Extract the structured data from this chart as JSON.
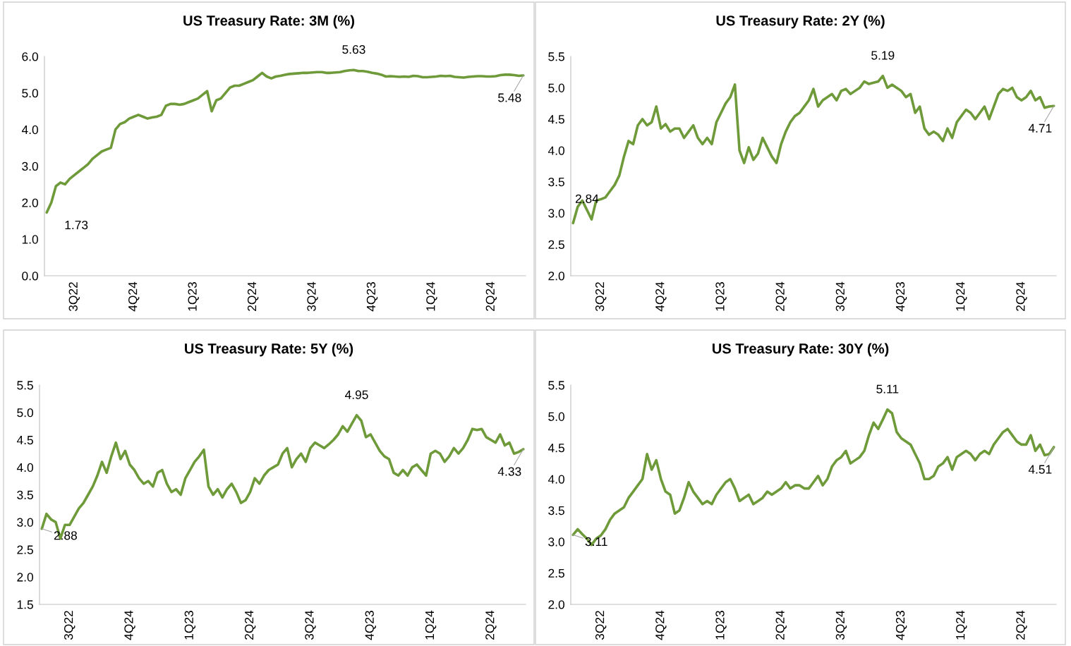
{
  "chart_data": [
    {
      "type": "line",
      "title": "US Treasury Rate: 3M (%)",
      "grid": false,
      "categories": [
        null,
        null,
        null,
        null,
        null,
        null,
        "3Q22",
        null,
        null,
        null,
        null,
        null,
        null,
        null,
        null,
        null,
        null,
        null,
        null,
        "4Q24",
        null,
        null,
        null,
        null,
        null,
        null,
        null,
        null,
        null,
        null,
        null,
        null,
        "1Q23",
        null,
        null,
        null,
        null,
        null,
        null,
        null,
        null,
        null,
        null,
        null,
        null,
        "2Q24",
        null,
        null,
        null,
        null,
        null,
        null,
        null,
        null,
        null,
        null,
        null,
        null,
        "3Q24",
        null,
        null,
        null,
        null,
        null,
        null,
        null,
        null,
        null,
        null,
        null,
        null,
        "4Q23",
        null,
        null,
        null,
        null,
        null,
        null,
        null,
        null,
        null,
        null,
        null,
        null,
        "1Q24",
        null,
        null,
        null,
        null,
        null,
        null,
        null,
        null,
        null,
        null,
        null,
        null,
        "2Q24",
        null,
        null,
        null,
        null,
        null,
        null,
        null
      ],
      "series": [
        {
          "color": "#6e9a3a",
          "values": [
            1.73,
            2.0,
            2.45,
            2.55,
            2.5,
            2.65,
            2.75,
            2.85,
            2.95,
            3.05,
            3.2,
            3.3,
            3.4,
            3.45,
            3.5,
            4.0,
            4.15,
            4.2,
            4.3,
            4.35,
            4.4,
            4.35,
            4.3,
            4.33,
            4.35,
            4.4,
            4.65,
            4.7,
            4.7,
            4.68,
            4.7,
            4.75,
            4.8,
            4.85,
            4.95,
            5.05,
            4.5,
            4.8,
            4.85,
            5.0,
            5.15,
            5.2,
            5.2,
            5.25,
            5.3,
            5.35,
            5.45,
            5.55,
            5.45,
            5.4,
            5.45,
            5.47,
            5.5,
            5.52,
            5.53,
            5.54,
            5.55,
            5.55,
            5.56,
            5.57,
            5.57,
            5.55,
            5.55,
            5.56,
            5.57,
            5.6,
            5.62,
            5.63,
            5.6,
            5.6,
            5.58,
            5.55,
            5.53,
            5.5,
            5.45,
            5.46,
            5.45,
            5.44,
            5.45,
            5.44,
            5.47,
            5.46,
            5.43,
            5.43,
            5.44,
            5.45,
            5.47,
            5.46,
            5.47,
            5.44,
            5.43,
            5.42,
            5.44,
            5.45,
            5.46,
            5.46,
            5.45,
            5.45,
            5.46,
            5.49,
            5.5,
            5.5,
            5.49,
            5.47,
            5.48
          ]
        }
      ],
      "ylim": [
        0,
        6
      ],
      "yticks": [
        {
          "value": 0,
          "label": "0.0"
        },
        {
          "value": 1,
          "label": "1.0"
        },
        {
          "value": 2,
          "label": "2.0"
        },
        {
          "value": 3,
          "label": "3.0"
        },
        {
          "value": 4,
          "label": "4.0"
        },
        {
          "value": 5,
          "label": "5.0"
        },
        {
          "value": 6,
          "label": "6.0"
        }
      ],
      "annotations": [
        "1.73",
        {
          "text": "5.63",
          "y": 5.63
        },
        {
          "text": "5.48",
          "y": 5.48
        }
      ]
    },
    {
      "type": "line",
      "title": "US Treasury Rate: 2Y (%)",
      "grid": false,
      "categories": [
        null,
        null,
        null,
        null,
        null,
        null,
        "3Q22",
        null,
        null,
        null,
        null,
        null,
        null,
        null,
        null,
        null,
        null,
        null,
        null,
        "4Q24",
        null,
        null,
        null,
        null,
        null,
        null,
        null,
        null,
        null,
        null,
        null,
        null,
        "1Q23",
        null,
        null,
        null,
        null,
        null,
        null,
        null,
        null,
        null,
        null,
        null,
        null,
        "2Q24",
        null,
        null,
        null,
        null,
        null,
        null,
        null,
        null,
        null,
        null,
        null,
        null,
        "3Q24",
        null,
        null,
        null,
        null,
        null,
        null,
        null,
        null,
        null,
        null,
        null,
        null,
        "4Q23",
        null,
        null,
        null,
        null,
        null,
        null,
        null,
        null,
        null,
        null,
        null,
        null,
        "1Q24",
        null,
        null,
        null,
        null,
        null,
        null,
        null,
        null,
        null,
        null,
        null,
        null,
        "2Q24",
        null,
        null,
        null,
        null,
        null,
        null,
        null
      ],
      "series": [
        {
          "color": "#6e9a3a",
          "values": [
            2.84,
            3.1,
            3.2,
            3.05,
            2.9,
            3.2,
            3.22,
            3.25,
            3.35,
            3.45,
            3.6,
            3.9,
            4.15,
            4.1,
            4.4,
            4.5,
            4.4,
            4.45,
            4.7,
            4.35,
            4.42,
            4.3,
            4.35,
            4.35,
            4.2,
            4.3,
            4.4,
            4.2,
            4.1,
            4.2,
            4.1,
            4.45,
            4.6,
            4.75,
            4.85,
            5.05,
            4.0,
            3.8,
            4.05,
            3.85,
            3.95,
            4.2,
            4.05,
            3.9,
            3.8,
            4.1,
            4.3,
            4.45,
            4.55,
            4.6,
            4.7,
            4.8,
            4.98,
            4.7,
            4.8,
            4.85,
            4.9,
            4.8,
            4.95,
            4.98,
            4.9,
            4.95,
            5.0,
            5.1,
            5.06,
            5.08,
            5.1,
            5.19,
            5.0,
            5.05,
            5.0,
            4.95,
            4.85,
            4.9,
            4.6,
            4.7,
            4.35,
            4.25,
            4.3,
            4.25,
            4.15,
            4.35,
            4.2,
            4.45,
            4.55,
            4.65,
            4.6,
            4.5,
            4.6,
            4.7,
            4.5,
            4.7,
            4.9,
            4.98,
            4.95,
            5.0,
            4.85,
            4.8,
            4.85,
            4.95,
            4.8,
            4.85,
            4.68,
            4.7,
            4.71
          ]
        }
      ],
      "ylim": [
        2,
        5.5
      ],
      "yticks": [
        {
          "value": 2,
          "label": "2.0"
        },
        {
          "value": 2.5,
          "label": "2.5"
        },
        {
          "value": 3,
          "label": "3.0"
        },
        {
          "value": 3.5,
          "label": "3.5"
        },
        {
          "value": 4,
          "label": "4.0"
        },
        {
          "value": 4.5,
          "label": "4.5"
        },
        {
          "value": 5,
          "label": "5.0"
        },
        {
          "value": 5.5,
          "label": "5.5"
        }
      ],
      "annotations": [
        "2.84",
        {
          "text": "5.19",
          "y": 5.19
        },
        {
          "text": "4.71",
          "y": 4.71
        }
      ]
    },
    {
      "type": "line",
      "title": "US Treasury Rate: 5Y (%)",
      "grid": false,
      "categories": [
        null,
        null,
        null,
        null,
        null,
        null,
        "3Q22",
        null,
        null,
        null,
        null,
        null,
        null,
        null,
        null,
        null,
        null,
        null,
        null,
        "4Q24",
        null,
        null,
        null,
        null,
        null,
        null,
        null,
        null,
        null,
        null,
        null,
        null,
        "1Q23",
        null,
        null,
        null,
        null,
        null,
        null,
        null,
        null,
        null,
        null,
        null,
        null,
        "2Q24",
        null,
        null,
        null,
        null,
        null,
        null,
        null,
        null,
        null,
        null,
        null,
        null,
        "3Q24",
        null,
        null,
        null,
        null,
        null,
        null,
        null,
        null,
        null,
        null,
        null,
        null,
        "4Q23",
        null,
        null,
        null,
        null,
        null,
        null,
        null,
        null,
        null,
        null,
        null,
        null,
        "1Q24",
        null,
        null,
        null,
        null,
        null,
        null,
        null,
        null,
        null,
        null,
        null,
        null,
        "2Q24",
        null,
        null,
        null,
        null,
        null,
        null,
        null
      ],
      "series": [
        {
          "color": "#6e9a3a",
          "values": [
            2.88,
            3.15,
            3.05,
            3.0,
            2.7,
            2.95,
            2.95,
            3.1,
            3.25,
            3.35,
            3.5,
            3.65,
            3.85,
            4.1,
            3.9,
            4.2,
            4.45,
            4.15,
            4.3,
            4.05,
            3.95,
            3.8,
            3.7,
            3.75,
            3.65,
            3.9,
            3.95,
            3.7,
            3.55,
            3.6,
            3.5,
            3.8,
            3.95,
            4.1,
            4.2,
            4.32,
            3.65,
            3.5,
            3.6,
            3.45,
            3.6,
            3.7,
            3.55,
            3.35,
            3.4,
            3.55,
            3.8,
            3.7,
            3.85,
            3.95,
            4.0,
            4.05,
            4.25,
            4.35,
            4.0,
            4.15,
            4.25,
            4.1,
            4.35,
            4.45,
            4.4,
            4.35,
            4.42,
            4.5,
            4.6,
            4.75,
            4.65,
            4.8,
            4.95,
            4.85,
            4.55,
            4.6,
            4.45,
            4.3,
            4.2,
            4.15,
            3.9,
            3.85,
            3.95,
            3.85,
            4.0,
            4.05,
            3.95,
            3.85,
            4.25,
            4.3,
            4.25,
            4.1,
            4.2,
            4.35,
            4.25,
            4.35,
            4.5,
            4.7,
            4.68,
            4.7,
            4.55,
            4.5,
            4.45,
            4.6,
            4.4,
            4.45,
            4.25,
            4.28,
            4.33
          ]
        }
      ],
      "ylim": [
        1.5,
        5.5
      ],
      "yticks": [
        {
          "value": 1.5,
          "label": "1.5"
        },
        {
          "value": 2,
          "label": "2.0"
        },
        {
          "value": 2.5,
          "label": "2.5"
        },
        {
          "value": 3,
          "label": "3.0"
        },
        {
          "value": 3.5,
          "label": "3.5"
        },
        {
          "value": 4,
          "label": "4.0"
        },
        {
          "value": 4.5,
          "label": "4.5"
        },
        {
          "value": 5,
          "label": "5.0"
        },
        {
          "value": 5.5,
          "label": "5.5"
        }
      ],
      "annotations": [
        {
          "text": "2.88",
          "y": 2.88
        },
        {
          "text": "4.95",
          "y": 4.95
        },
        {
          "text": "4.33",
          "y": 4.33
        }
      ]
    },
    {
      "type": "line",
      "title": "US Treasury Rate: 30Y (%)",
      "grid": false,
      "categories": [
        null,
        null,
        null,
        null,
        null,
        null,
        "3Q22",
        null,
        null,
        null,
        null,
        null,
        null,
        null,
        null,
        null,
        null,
        null,
        null,
        "4Q24",
        null,
        null,
        null,
        null,
        null,
        null,
        null,
        null,
        null,
        null,
        null,
        null,
        "1Q23",
        null,
        null,
        null,
        null,
        null,
        null,
        null,
        null,
        null,
        null,
        null,
        null,
        "2Q24",
        null,
        null,
        null,
        null,
        null,
        null,
        null,
        null,
        null,
        null,
        null,
        null,
        "3Q24",
        null,
        null,
        null,
        null,
        null,
        null,
        null,
        null,
        null,
        null,
        null,
        null,
        "4Q23",
        null,
        null,
        null,
        null,
        null,
        null,
        null,
        null,
        null,
        null,
        null,
        null,
        "1Q24",
        null,
        null,
        null,
        null,
        null,
        null,
        null,
        null,
        null,
        null,
        null,
        null,
        "2Q24",
        null,
        null,
        null,
        null,
        null,
        null,
        null
      ],
      "series": [
        {
          "color": "#6e9a3a",
          "values": [
            3.11,
            3.2,
            3.12,
            3.05,
            2.95,
            3.05,
            3.1,
            3.2,
            3.35,
            3.45,
            3.5,
            3.55,
            3.7,
            3.8,
            3.9,
            4.0,
            4.4,
            4.15,
            4.3,
            4.0,
            3.8,
            3.75,
            3.45,
            3.5,
            3.7,
            3.95,
            3.8,
            3.7,
            3.6,
            3.65,
            3.6,
            3.75,
            3.85,
            3.95,
            4.0,
            3.85,
            3.65,
            3.7,
            3.75,
            3.6,
            3.65,
            3.7,
            3.8,
            3.75,
            3.8,
            3.85,
            3.95,
            3.85,
            3.9,
            3.9,
            3.85,
            3.85,
            3.95,
            4.05,
            3.9,
            4.0,
            4.2,
            4.3,
            4.35,
            4.45,
            4.25,
            4.3,
            4.35,
            4.45,
            4.7,
            4.9,
            4.8,
            4.95,
            5.11,
            5.05,
            4.75,
            4.65,
            4.6,
            4.55,
            4.4,
            4.25,
            4.0,
            4.0,
            4.05,
            4.2,
            4.25,
            4.35,
            4.15,
            4.35,
            4.4,
            4.45,
            4.4,
            4.3,
            4.4,
            4.45,
            4.4,
            4.55,
            4.65,
            4.75,
            4.8,
            4.7,
            4.6,
            4.55,
            4.55,
            4.7,
            4.45,
            4.55,
            4.38,
            4.4,
            4.51
          ]
        }
      ],
      "ylim": [
        2,
        5.5
      ],
      "yticks": [
        {
          "value": 2,
          "label": "2.0"
        },
        {
          "value": 2.5,
          "label": "2.5"
        },
        {
          "value": 3,
          "label": "3.0"
        },
        {
          "value": 3.5,
          "label": "3.5"
        },
        {
          "value": 4,
          "label": "4.0"
        },
        {
          "value": 4.5,
          "label": "4.5"
        },
        {
          "value": 5,
          "label": "5.0"
        },
        {
          "value": 5.5,
          "label": "5.5"
        }
      ],
      "annotations": [
        {
          "text": "3.11",
          "y": 3.11
        },
        {
          "text": "5.11",
          "y": 5.11
        },
        {
          "text": "4.51",
          "y": 4.51
        }
      ]
    }
  ]
}
